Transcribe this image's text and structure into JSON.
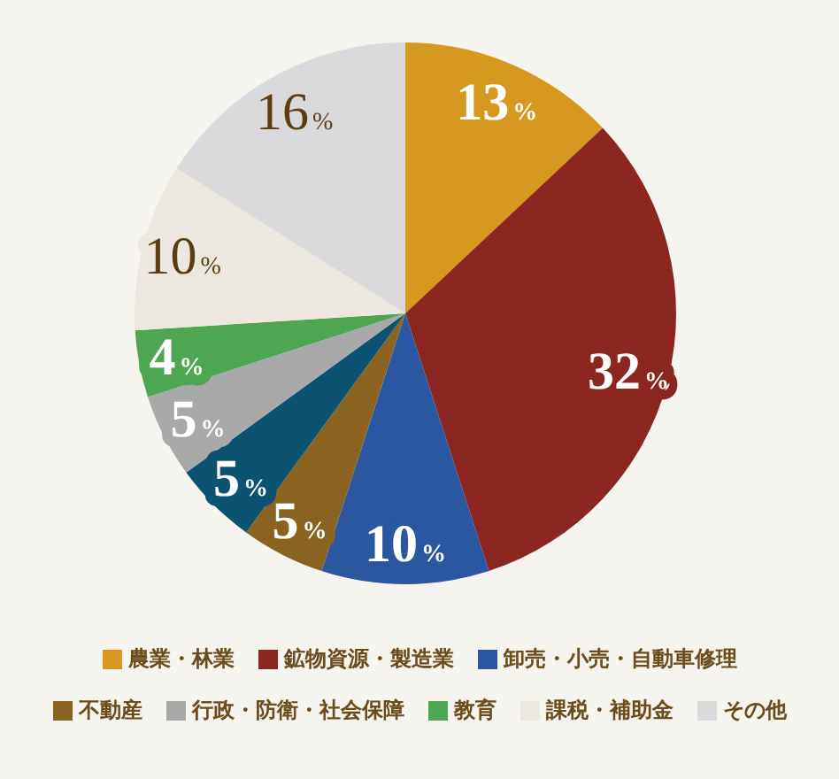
{
  "chart_data": {
    "type": "pie",
    "categories": [
      "農業・林業",
      "鉱物資源・製造業",
      "卸売・小売・自動車修理",
      "不動産",
      null,
      "行政・防衛・社会保障",
      "教育",
      "課税・補助金",
      "その他"
    ],
    "values": [
      13,
      32,
      10,
      5,
      5,
      5,
      4,
      10,
      16
    ],
    "colors": [
      "#d6981e",
      "#8c2620",
      "#2b56a0",
      "#8b6320",
      "#0c5372",
      "#a9a9a9",
      "#4ea653",
      "#ece8df",
      "#dadadc"
    ],
    "value_labels": [
      "13%",
      "32%",
      "10%",
      "5%",
      "5%",
      "5%",
      "4%",
      "10%",
      "16%"
    ],
    "legend": "bottom"
  }
}
